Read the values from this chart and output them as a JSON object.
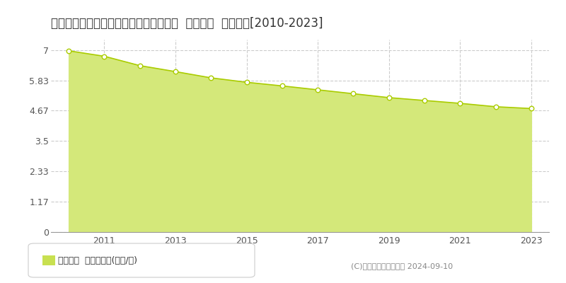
{
  "title": "鹿児島県大島郡天城町大字平土野６番８  地価公示  地価推移[2010-2023]",
  "years": [
    2010,
    2011,
    2012,
    2013,
    2014,
    2015,
    2016,
    2017,
    2018,
    2019,
    2020,
    2021,
    2022,
    2023
  ],
  "values": [
    6.97,
    6.76,
    6.4,
    6.17,
    5.93,
    5.76,
    5.62,
    5.47,
    5.32,
    5.17,
    5.06,
    4.95,
    4.82,
    4.75
  ],
  "line_color": "#aacc00",
  "fill_color": "#d4e87a",
  "fill_alpha": 1.0,
  "marker_color": "#ffffff",
  "marker_edge_color": "#aacc00",
  "background_color": "#ffffff",
  "yticks": [
    0,
    1.17,
    2.33,
    3.5,
    4.67,
    5.83,
    7
  ],
  "ytick_labels": [
    "0",
    "1.17",
    "2.33",
    "3.5",
    "4.67",
    "5.83",
    "7"
  ],
  "ylim": [
    0,
    7.4
  ],
  "xlim": [
    2009.5,
    2023.5
  ],
  "xticks": [
    2011,
    2013,
    2015,
    2017,
    2019,
    2021,
    2023
  ],
  "grid_color": "#cccccc",
  "grid_style": "--",
  "copyright_text": "(C)土地価格ドットコム 2024-09-10",
  "legend_label": "地価公示  平均坪単価(万円/坪)",
  "legend_color": "#c8e050",
  "title_fontsize": 12,
  "tick_fontsize": 9,
  "legend_fontsize": 9,
  "copyright_fontsize": 8
}
